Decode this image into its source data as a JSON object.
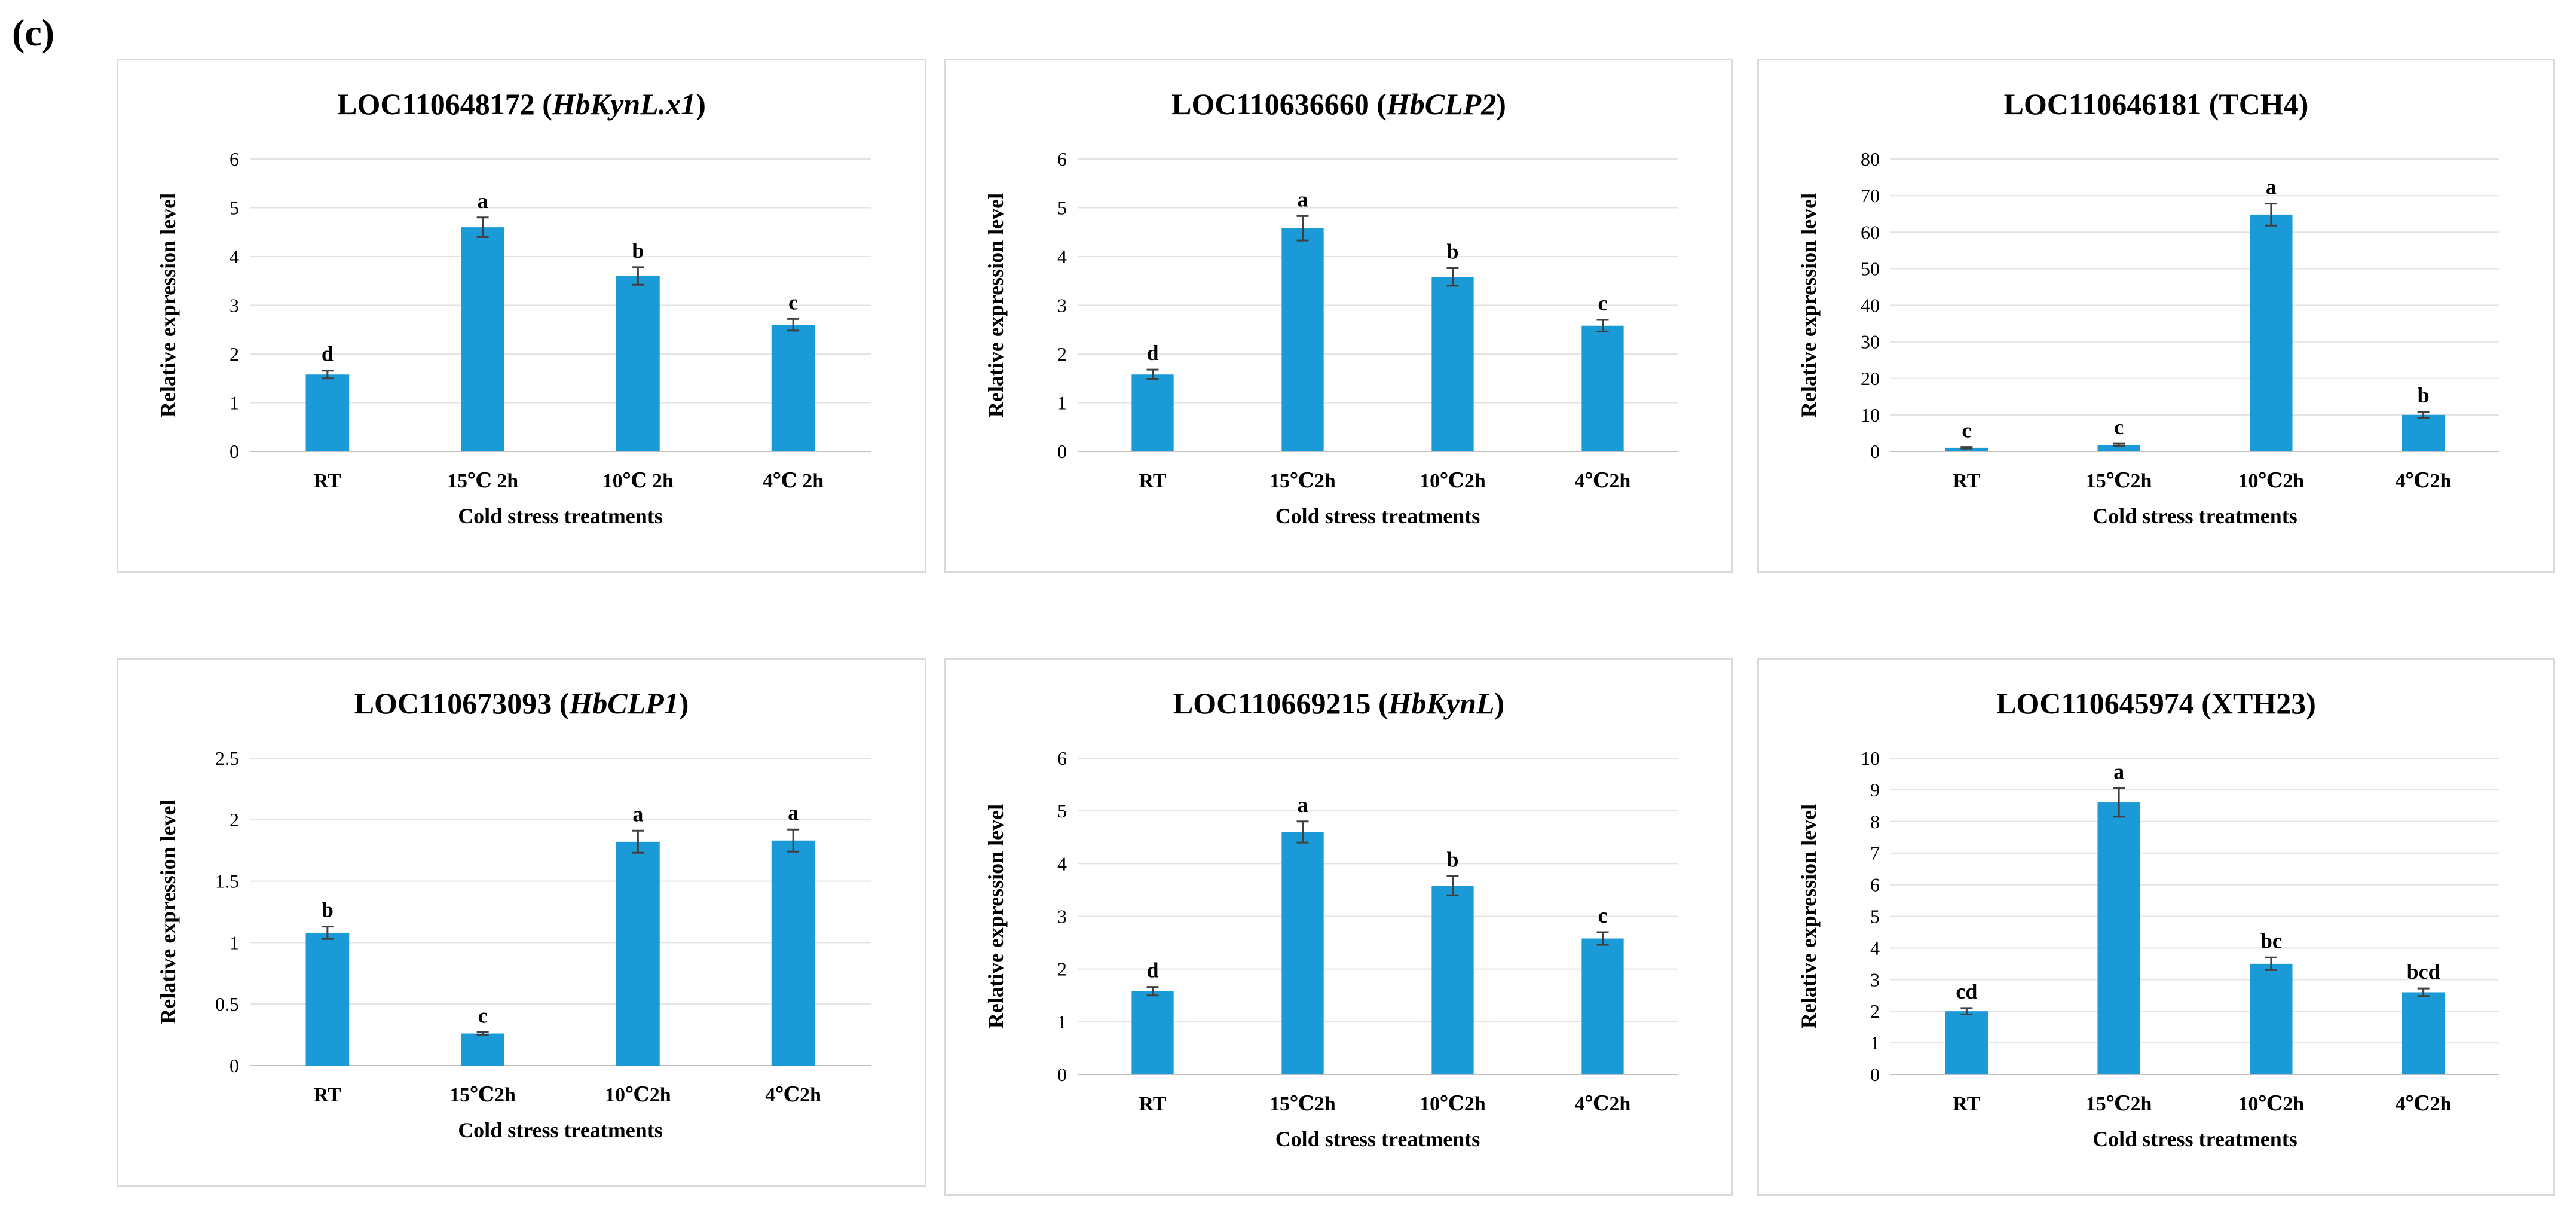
{
  "panel_label": "(c)",
  "chart_data": [
    {
      "type": "bar",
      "title": "LOC110648172 (HbKynL.x1)",
      "title_parts": [
        {
          "text": "LOC110648172 (",
          "italic": false
        },
        {
          "text": "HbKynL.x1",
          "italic": true
        },
        {
          "text": ")",
          "italic": false
        }
      ],
      "categories": [
        "RT",
        "15℃ 2h",
        "10℃ 2h",
        "4℃ 2h"
      ],
      "values": [
        1.58,
        4.6,
        3.6,
        2.6
      ],
      "errors": [
        0.08,
        0.2,
        0.18,
        0.12
      ],
      "letters": [
        "d",
        "a",
        "b",
        "c"
      ],
      "xlabel": "Cold stress treatments",
      "ylabel": "Relative expression level",
      "ylim": [
        0,
        6
      ],
      "yticks": [
        "0",
        "1",
        "2",
        "3",
        "4",
        "5",
        "6"
      ],
      "color": "#1a9ad6",
      "grid": true
    },
    {
      "type": "bar",
      "title": "LOC110636660 (HbCLP2)",
      "title_parts": [
        {
          "text": "LOC110636660 (",
          "italic": false
        },
        {
          "text": "HbCLP2",
          "italic": true
        },
        {
          "text": ")",
          "italic": false
        }
      ],
      "categories": [
        "RT",
        "15℃2h",
        "10℃2h",
        "4℃2h"
      ],
      "values": [
        1.58,
        4.58,
        3.58,
        2.58
      ],
      "errors": [
        0.1,
        0.25,
        0.18,
        0.12
      ],
      "letters": [
        "d",
        "a",
        "b",
        "c"
      ],
      "xlabel": "Cold stress treatments",
      "ylabel": "Relative expression level",
      "ylim": [
        0,
        6
      ],
      "yticks": [
        "0",
        "1",
        "2",
        "3",
        "4",
        "5",
        "6"
      ],
      "color": "#1a9ad6",
      "grid": true
    },
    {
      "type": "bar",
      "title": "LOC110646181 (TCH4)",
      "title_parts": [
        {
          "text": "LOC110646181 (TCH4)",
          "italic": false
        }
      ],
      "categories": [
        "RT",
        "15℃2h",
        "10℃2h",
        "4℃2h"
      ],
      "values": [
        1.0,
        1.8,
        64.8,
        10.0
      ],
      "errors": [
        0.2,
        0.3,
        3.0,
        0.8
      ],
      "letters": [
        "c",
        "c",
        "a",
        "b"
      ],
      "xlabel": "Cold stress treatments",
      "ylabel": "Relative expression level",
      "ylim": [
        0,
        80
      ],
      "yticks": [
        "0",
        "10",
        "20",
        "30",
        "40",
        "50",
        "60",
        "70",
        "80"
      ],
      "color": "#1a9ad6",
      "grid": true
    },
    {
      "type": "bar",
      "title": "LOC110673093 (HbCLP1)",
      "title_parts": [
        {
          "text": "LOC110673093 (",
          "italic": false
        },
        {
          "text": "HbCLP1",
          "italic": true
        },
        {
          "text": ")",
          "italic": false
        }
      ],
      "categories": [
        "RT",
        "15℃2h",
        "10℃2h",
        "4℃2h"
      ],
      "values": [
        1.08,
        0.26,
        1.82,
        1.83
      ],
      "errors": [
        0.05,
        0.01,
        0.09,
        0.09
      ],
      "letters": [
        "b",
        "c",
        "a",
        "a"
      ],
      "xlabel": "Cold stress treatments",
      "ylabel": "Relative expression level",
      "ylim": [
        0,
        2.5
      ],
      "yticks": [
        "0",
        "0.5",
        "1",
        "1.5",
        "2",
        "2.5"
      ],
      "color": "#1a9ad6",
      "grid": true
    },
    {
      "type": "bar",
      "title": "LOC110669215 (HbKynL)",
      "title_parts": [
        {
          "text": "LOC110669215 (",
          "italic": false
        },
        {
          "text": "HbKynL",
          "italic": true
        },
        {
          "text": ")",
          "italic": false
        }
      ],
      "categories": [
        "RT",
        "15℃2h",
        "10℃2h",
        "4℃2h"
      ],
      "values": [
        1.58,
        4.6,
        3.58,
        2.58
      ],
      "errors": [
        0.08,
        0.2,
        0.18,
        0.12
      ],
      "letters": [
        "d",
        "a",
        "b",
        "c"
      ],
      "xlabel": "Cold stress treatments",
      "ylabel": "Relative expression level",
      "ylim": [
        0,
        6
      ],
      "yticks": [
        "0",
        "1",
        "2",
        "3",
        "4",
        "5",
        "6"
      ],
      "color": "#1a9ad6",
      "grid": true
    },
    {
      "type": "bar",
      "title": "LOC110645974 (XTH23)",
      "title_parts": [
        {
          "text": "LOC110645974 (XTH23)",
          "italic": false
        }
      ],
      "categories": [
        "RT",
        "15℃2h",
        "10℃2h",
        "4℃2h"
      ],
      "values": [
        2.0,
        8.6,
        3.5,
        2.6
      ],
      "errors": [
        0.1,
        0.45,
        0.2,
        0.12
      ],
      "letters": [
        "cd",
        "a",
        "bc",
        "bcd"
      ],
      "xlabel": "Cold stress treatments",
      "ylabel": "Relative expression level",
      "ylim": [
        0,
        10
      ],
      "yticks": [
        "0",
        "1",
        "2",
        "3",
        "4",
        "5",
        "6",
        "7",
        "8",
        "9",
        "10"
      ],
      "color": "#1a9ad6",
      "grid": true
    }
  ]
}
